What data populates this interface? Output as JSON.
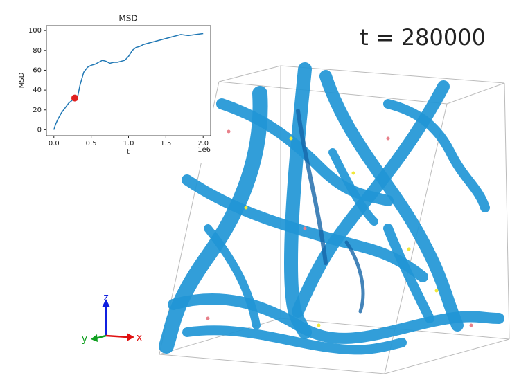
{
  "chart_data": {
    "type": "line",
    "title": "MSD",
    "xlabel": "t",
    "ylabel": "MSD",
    "x_offset_label": "1e6",
    "x": [
      0,
      20000,
      50000,
      100000,
      150000,
      200000,
      250000,
      280000,
      320000,
      350000,
      400000,
      450000,
      500000,
      550000,
      600000,
      650000,
      700000,
      750000,
      800000,
      850000,
      900000,
      950000,
      1000000,
      1050000,
      1100000,
      1150000,
      1200000,
      1300000,
      1400000,
      1500000,
      1600000,
      1700000,
      1800000,
      1900000,
      2000000
    ],
    "series": [
      {
        "name": "MSD",
        "color": "#1f77b4",
        "values": [
          0,
          5,
          10,
          17,
          22,
          27,
          30,
          32,
          34,
          45,
          58,
          63,
          65,
          66,
          68,
          70,
          69,
          67,
          68,
          68,
          69,
          70,
          74,
          80,
          83,
          84,
          86,
          88,
          90,
          92,
          94,
          96,
          95,
          96,
          97
        ]
      }
    ],
    "marker": {
      "x": 280000,
      "y": 32,
      "color": "#e02020"
    },
    "xlim": [
      -100000,
      2100000
    ],
    "ylim": [
      -6,
      105
    ],
    "xticks": [
      {
        "value": 0,
        "label": "0.0"
      },
      {
        "value": 500000,
        "label": "0.5"
      },
      {
        "value": 1000000,
        "label": "1.0"
      },
      {
        "value": 1500000,
        "label": "1.5"
      },
      {
        "value": 2000000,
        "label": "2.0"
      }
    ],
    "yticks": [
      0,
      20,
      40,
      60,
      80,
      100
    ]
  },
  "timestamp": "t = 280000",
  "axes_triad": {
    "z": "z",
    "y": "y",
    "x": "x"
  }
}
